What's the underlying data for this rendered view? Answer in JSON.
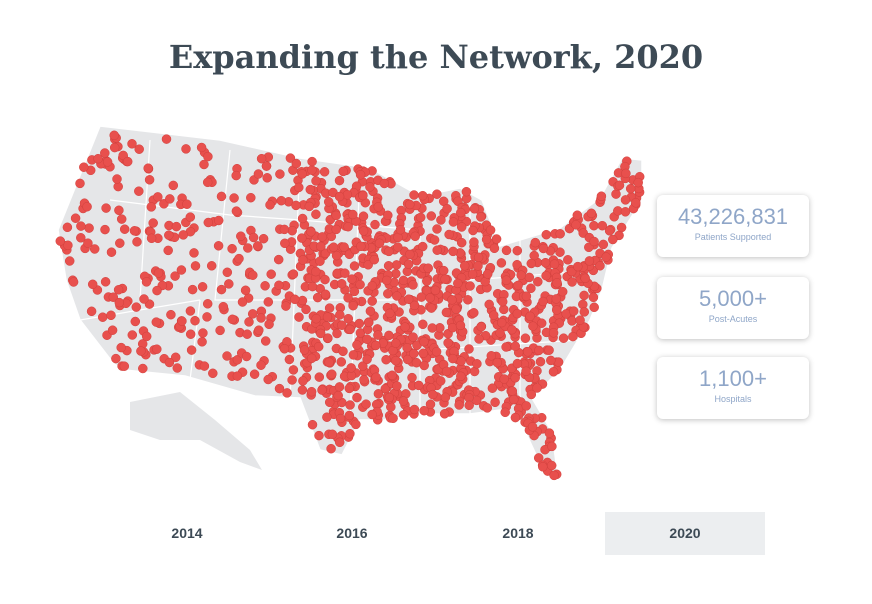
{
  "header": {
    "title": "Expanding the Network, 2020"
  },
  "stats": [
    {
      "value": "43,226,831",
      "label": "Patients Supported"
    },
    {
      "value": "5,000+",
      "label": "Post-Acutes"
    },
    {
      "value": "1,100+",
      "label": "Hospitals"
    }
  ],
  "tabs": [
    "2014",
    "2016",
    "2018",
    "2020"
  ]
}
